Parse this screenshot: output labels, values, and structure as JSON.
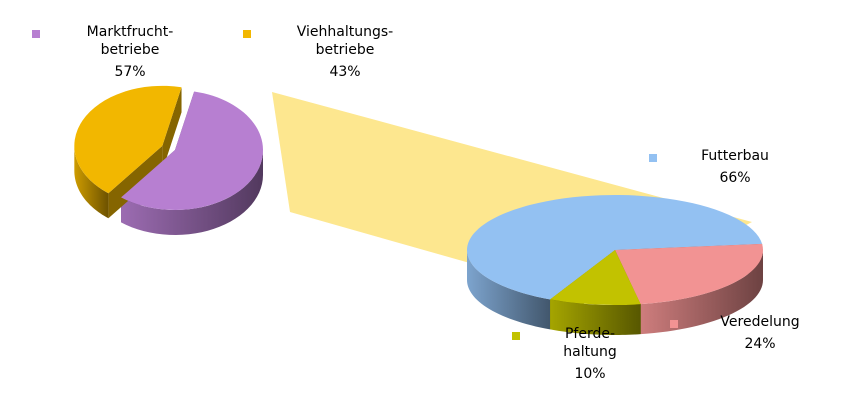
{
  "chart_data": [
    {
      "type": "pie",
      "categories": [
        "Marktfrucht-\nbetriebe",
        "Viehhaltungs-\nbetriebe"
      ],
      "values": [
        57,
        43
      ],
      "value_labels": [
        "57%",
        "43%"
      ],
      "colors": [
        "#b77fd1",
        "#f2b700"
      ]
    },
    {
      "type": "pie",
      "categories": [
        "Futterbau",
        "Veredelung",
        "Pferde-\nhaltung"
      ],
      "values": [
        66,
        24,
        10
      ],
      "value_labels": [
        "66%",
        "24%",
        "10%"
      ],
      "colors": [
        "#93c1f2",
        "#f29393",
        "#c2c200"
      ]
    }
  ]
}
